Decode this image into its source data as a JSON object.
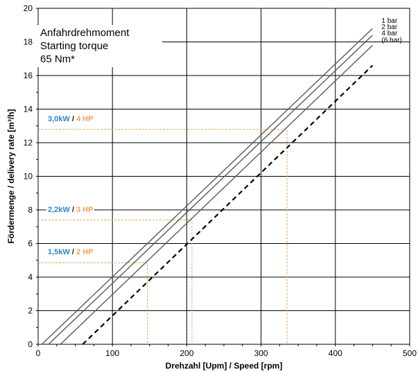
{
  "note": {
    "line1": "Anfahrdrehmoment",
    "line2": "Starting torque",
    "line3": "65 Nm*"
  },
  "power_labels": [
    {
      "kw": "3,0kW",
      "sep": "/",
      "hp": "4 HP"
    },
    {
      "kw": "2,2kW",
      "sep": "/",
      "hp": "3 HP"
    },
    {
      "kw": "1,5kW",
      "sep": "/",
      "hp": "2 HP"
    }
  ],
  "colors": {
    "line": "#595959",
    "dashed": "#000000",
    "kw": "#2e86c8",
    "hp": "#f0a05c",
    "marker": "#f0a05c",
    "grid": "#000000"
  },
  "chart_data": {
    "type": "line",
    "xlabel": "Drehzahl [Upm]  /  Speed [rpm]",
    "ylabel": "Fördermenge  /  delivery rate [m³/h]",
    "xlim": [
      0,
      500
    ],
    "ylim": [
      0,
      20
    ],
    "xticks": [
      0,
      100,
      200,
      300,
      400,
      500
    ],
    "yticks": [
      0,
      2,
      4,
      6,
      8,
      10,
      12,
      14,
      16,
      18,
      20
    ],
    "grid": true,
    "series": [
      {
        "name": "1 bar",
        "style": "solid",
        "x": [
          5,
          450
        ],
        "y": [
          0,
          18.8
        ]
      },
      {
        "name": "2 bar",
        "style": "solid",
        "x": [
          14,
          450
        ],
        "y": [
          0,
          18.4
        ]
      },
      {
        "name": "4 bar",
        "style": "solid",
        "x": [
          30,
          450
        ],
        "y": [
          0,
          17.8
        ]
      },
      {
        "name": "(6 bar)",
        "style": "dashed",
        "x": [
          60,
          450
        ],
        "y": [
          0,
          16.6
        ]
      }
    ],
    "operating_points": [
      {
        "label": "3,0kW / 4 HP",
        "x": 335,
        "y": 12.8
      },
      {
        "label": "2,2kW / 3 HP",
        "x": 207,
        "y": 7.4
      },
      {
        "label": "1,5kW / 2 HP",
        "x": 147,
        "y": 4.85
      }
    ]
  }
}
